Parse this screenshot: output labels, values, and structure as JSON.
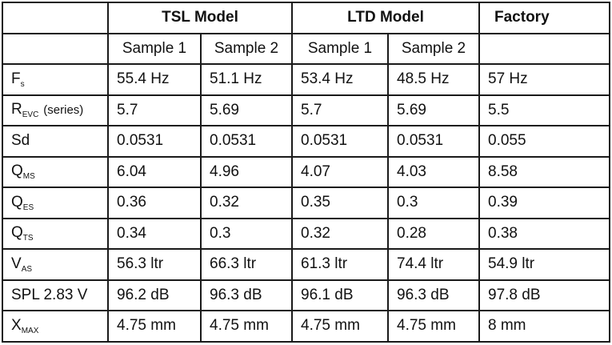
{
  "header": {
    "groups": [
      "TSL Model",
      "LTD Model",
      "Factory"
    ],
    "samples": [
      "Sample 1",
      "Sample 2",
      "Sample 1",
      "Sample 2",
      ""
    ]
  },
  "rows": [
    {
      "label": {
        "main": "F",
        "sub": "s",
        "note": ""
      },
      "values": [
        "55.4 Hz",
        "51.1 Hz",
        "53.4 Hz",
        "48.5 Hz",
        "57 Hz"
      ]
    },
    {
      "label": {
        "main": "R",
        "sub": "EVC",
        "note": "(series)"
      },
      "values": [
        "5.7",
        "5.69",
        "5.7",
        "5.69",
        "5.5"
      ]
    },
    {
      "label": {
        "main": "Sd",
        "sub": "",
        "note": ""
      },
      "values": [
        "0.0531",
        "0.0531",
        "0.0531",
        "0.0531",
        "0.055"
      ]
    },
    {
      "label": {
        "main": "Q",
        "sub": "MS",
        "note": ""
      },
      "values": [
        "6.04",
        "4.96",
        "4.07",
        "4.03",
        "8.58"
      ]
    },
    {
      "label": {
        "main": "Q",
        "sub": "ES",
        "note": ""
      },
      "values": [
        "0.36",
        "0.32",
        "0.35",
        "0.3",
        "0.39"
      ]
    },
    {
      "label": {
        "main": "Q",
        "sub": "TS",
        "note": ""
      },
      "values": [
        "0.34",
        "0.3",
        "0.32",
        "0.28",
        "0.38"
      ]
    },
    {
      "label": {
        "main": "V",
        "sub": "AS",
        "note": ""
      },
      "values": [
        "56.3 ltr",
        "66.3 ltr",
        "61.3 ltr",
        "74.4 ltr",
        "54.9 ltr"
      ]
    },
    {
      "label": {
        "main": "SPL 2.83 V",
        "sub": "",
        "note": ""
      },
      "values": [
        "96.2 dB",
        "96.3 dB",
        "96.1 dB",
        "96.3 dB",
        "97.8 dB"
      ]
    },
    {
      "label": {
        "main": "X",
        "sub": "MAX",
        "note": ""
      },
      "values": [
        "4.75 mm",
        "4.75 mm",
        "4.75 mm",
        "4.75 mm",
        "8 mm"
      ]
    }
  ]
}
